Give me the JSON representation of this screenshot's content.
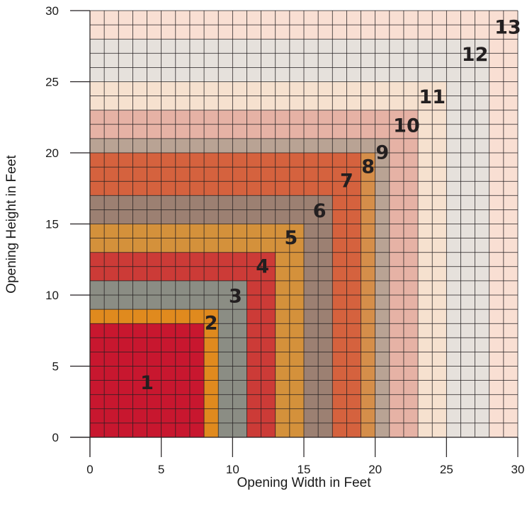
{
  "chart_data": {
    "type": "heatmap",
    "title": "",
    "xlabel": "Opening Width in Feet",
    "ylabel": "Opening Height in Feet",
    "xlim": [
      0,
      30
    ],
    "ylim": [
      0,
      30
    ],
    "xticks": [
      0,
      5,
      10,
      15,
      20,
      25,
      30
    ],
    "yticks": [
      0,
      5,
      10,
      15,
      20,
      25,
      30
    ],
    "cell_size": 1,
    "grid": true,
    "zones": [
      {
        "label": "1",
        "max_width": 8,
        "max_height": 8,
        "color": "#c8172f",
        "label_at": [
          4,
          3.8
        ]
      },
      {
        "label": "2",
        "max_width": 9,
        "max_height": 9,
        "color": "#e08a1e",
        "label_at": [
          8.5,
          8
        ]
      },
      {
        "label": "3",
        "max_width": 11,
        "max_height": 11,
        "color": "#8b8d84",
        "label_at": [
          10.2,
          9.9
        ]
      },
      {
        "label": "4",
        "max_width": 13,
        "max_height": 13,
        "color": "#cc3b37",
        "label_at": [
          12.1,
          12
        ]
      },
      {
        "label": "5",
        "max_width": 15,
        "max_height": 15,
        "color": "#d4913b",
        "label_at": [
          14.1,
          14
        ]
      },
      {
        "label": "6",
        "max_width": 17,
        "max_height": 17,
        "color": "#9c8072",
        "label_at": [
          16.1,
          15.9
        ]
      },
      {
        "label": "7",
        "max_width": 19,
        "max_height": 20,
        "color": "#d5623e",
        "label_at": [
          18,
          18
        ]
      },
      {
        "label": "8",
        "max_width": 20,
        "max_height": 20,
        "color": "#d58e4a",
        "label_at": [
          19.5,
          19
        ]
      },
      {
        "label": "9",
        "max_width": 21,
        "max_height": 21,
        "color": "#b9a394",
        "label_at": [
          20.5,
          20
        ]
      },
      {
        "label": "10",
        "max_width": 23,
        "max_height": 23,
        "color": "#e6b2a5",
        "label_at": [
          22.2,
          21.9
        ]
      },
      {
        "label": "11",
        "max_width": 25,
        "max_height": 25,
        "color": "#f6e1cf",
        "label_at": [
          24,
          23.9
        ]
      },
      {
        "label": "12",
        "max_width": 28,
        "max_height": 28,
        "color": "#e6e1dc",
        "label_at": [
          27,
          26.9
        ]
      },
      {
        "label": "13",
        "max_width": 30,
        "max_height": 30,
        "color": "#f9dfd3",
        "label_at": [
          29.3,
          28.8
        ]
      }
    ]
  }
}
